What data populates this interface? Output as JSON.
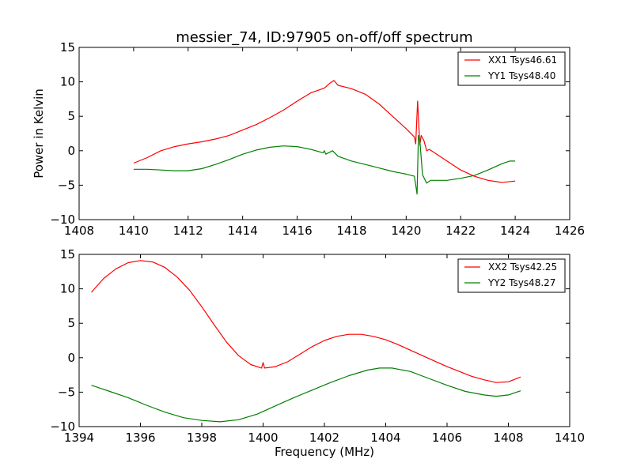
{
  "chart_data": [
    {
      "type": "line",
      "title": "messier_74, ID:97905 on-off/off spectrum",
      "xlabel": "",
      "ylabel": "Power in Kelvin",
      "xlim": [
        1408,
        1426
      ],
      "ylim": [
        -10,
        15
      ],
      "xticks": [
        1408,
        1410,
        1412,
        1414,
        1416,
        1418,
        1420,
        1422,
        1424,
        1426
      ],
      "xtick_labels": [
        "1408",
        "1410",
        "1412",
        "1414",
        "1416",
        "1418",
        "1420",
        "1422",
        "1424",
        "1426"
      ],
      "yticks": [
        -10,
        -5,
        0,
        5,
        10,
        15
      ],
      "ytick_labels": [
        "−10",
        "−5",
        "0",
        "5",
        "10",
        "15"
      ],
      "grid": false,
      "legend_position": "top-right",
      "series": [
        {
          "name": "XX1 Tsys46.61",
          "color": "#ff0000",
          "points": [
            [
              1410.0,
              -1.8
            ],
            [
              1410.5,
              -1.0
            ],
            [
              1411.0,
              0.0
            ],
            [
              1411.5,
              0.6
            ],
            [
              1412.0,
              1.0
            ],
            [
              1412.5,
              1.3
            ],
            [
              1413.0,
              1.7
            ],
            [
              1413.5,
              2.2
            ],
            [
              1414.0,
              3.0
            ],
            [
              1414.5,
              3.8
            ],
            [
              1415.0,
              4.8
            ],
            [
              1415.5,
              5.9
            ],
            [
              1416.0,
              7.2
            ],
            [
              1416.5,
              8.4
            ],
            [
              1417.0,
              9.1
            ],
            [
              1417.2,
              9.8
            ],
            [
              1417.35,
              10.2
            ],
            [
              1417.5,
              9.5
            ],
            [
              1418.0,
              9.0
            ],
            [
              1418.5,
              8.2
            ],
            [
              1419.0,
              6.8
            ],
            [
              1419.5,
              5.0
            ],
            [
              1420.0,
              3.2
            ],
            [
              1420.3,
              2.0
            ],
            [
              1420.35,
              1.0
            ],
            [
              1420.42,
              7.2
            ],
            [
              1420.5,
              0.8
            ],
            [
              1420.55,
              2.2
            ],
            [
              1420.65,
              1.5
            ],
            [
              1420.75,
              0.0
            ],
            [
              1420.85,
              0.2
            ],
            [
              1421.0,
              -0.2
            ],
            [
              1421.5,
              -1.5
            ],
            [
              1422.0,
              -2.8
            ],
            [
              1422.5,
              -3.7
            ],
            [
              1423.0,
              -4.3
            ],
            [
              1423.5,
              -4.6
            ],
            [
              1424.0,
              -4.4
            ]
          ]
        },
        {
          "name": "YY1 Tsys48.40",
          "color": "#008000",
          "points": [
            [
              1410.0,
              -2.7
            ],
            [
              1410.5,
              -2.7
            ],
            [
              1411.0,
              -2.8
            ],
            [
              1411.5,
              -2.9
            ],
            [
              1412.0,
              -2.9
            ],
            [
              1412.5,
              -2.6
            ],
            [
              1413.0,
              -2.0
            ],
            [
              1413.5,
              -1.3
            ],
            [
              1414.0,
              -0.5
            ],
            [
              1414.5,
              0.1
            ],
            [
              1415.0,
              0.5
            ],
            [
              1415.5,
              0.7
            ],
            [
              1416.0,
              0.6
            ],
            [
              1416.5,
              0.2
            ],
            [
              1416.95,
              -0.3
            ],
            [
              1417.0,
              0.0
            ],
            [
              1417.05,
              -0.5
            ],
            [
              1417.3,
              0.0
            ],
            [
              1417.5,
              -0.8
            ],
            [
              1418.0,
              -1.5
            ],
            [
              1418.5,
              -2.0
            ],
            [
              1419.0,
              -2.5
            ],
            [
              1419.5,
              -3.0
            ],
            [
              1420.0,
              -3.4
            ],
            [
              1420.3,
              -3.7
            ],
            [
              1420.4,
              -6.3
            ],
            [
              1420.45,
              2.2
            ],
            [
              1420.5,
              1.5
            ],
            [
              1420.6,
              -3.5
            ],
            [
              1420.75,
              -4.7
            ],
            [
              1420.9,
              -4.3
            ],
            [
              1421.0,
              -4.3
            ],
            [
              1421.5,
              -4.3
            ],
            [
              1422.0,
              -4.0
            ],
            [
              1422.5,
              -3.6
            ],
            [
              1423.0,
              -2.8
            ],
            [
              1423.5,
              -1.9
            ],
            [
              1423.8,
              -1.5
            ],
            [
              1424.0,
              -1.5
            ]
          ]
        }
      ]
    },
    {
      "type": "line",
      "title": "",
      "xlabel": "Frequency (MHz)",
      "ylabel": "",
      "xlim": [
        1394,
        1410
      ],
      "ylim": [
        -10,
        15
      ],
      "xticks": [
        1394,
        1396,
        1398,
        1400,
        1402,
        1404,
        1406,
        1408,
        1410
      ],
      "xtick_labels": [
        "1394",
        "1396",
        "1398",
        "1400",
        "1402",
        "1404",
        "1406",
        "1408",
        "1410"
      ],
      "yticks": [
        -10,
        -5,
        0,
        5,
        10,
        15
      ],
      "ytick_labels": [
        "−10",
        "−5",
        "0",
        "5",
        "10",
        "15"
      ],
      "grid": false,
      "legend_position": "top-right",
      "series": [
        {
          "name": "XX2 Tsys42.25",
          "color": "#ff0000",
          "points": [
            [
              1394.4,
              9.5
            ],
            [
              1394.8,
              11.5
            ],
            [
              1395.2,
              12.9
            ],
            [
              1395.6,
              13.8
            ],
            [
              1396.0,
              14.1
            ],
            [
              1396.4,
              13.9
            ],
            [
              1396.8,
              13.1
            ],
            [
              1397.2,
              11.7
            ],
            [
              1397.6,
              9.8
            ],
            [
              1398.0,
              7.4
            ],
            [
              1398.4,
              4.8
            ],
            [
              1398.8,
              2.3
            ],
            [
              1399.2,
              0.3
            ],
            [
              1399.6,
              -1.0
            ],
            [
              1399.95,
              -1.5
            ],
            [
              1400.0,
              -0.7
            ],
            [
              1400.05,
              -1.5
            ],
            [
              1400.4,
              -1.3
            ],
            [
              1400.8,
              -0.6
            ],
            [
              1401.2,
              0.5
            ],
            [
              1401.6,
              1.6
            ],
            [
              1402.0,
              2.5
            ],
            [
              1402.4,
              3.1
            ],
            [
              1402.8,
              3.4
            ],
            [
              1403.2,
              3.4
            ],
            [
              1403.6,
              3.1
            ],
            [
              1404.0,
              2.6
            ],
            [
              1404.4,
              1.9
            ],
            [
              1404.8,
              1.1
            ],
            [
              1405.2,
              0.3
            ],
            [
              1405.6,
              -0.5
            ],
            [
              1406.0,
              -1.3
            ],
            [
              1406.4,
              -2.0
            ],
            [
              1406.8,
              -2.7
            ],
            [
              1407.2,
              -3.2
            ],
            [
              1407.6,
              -3.6
            ],
            [
              1408.0,
              -3.5
            ],
            [
              1408.4,
              -2.8
            ]
          ]
        },
        {
          "name": "YY2 Tsys48.27",
          "color": "#008000",
          "points": [
            [
              1394.4,
              -4.0
            ],
            [
              1395.0,
              -4.9
            ],
            [
              1395.6,
              -5.8
            ],
            [
              1396.2,
              -6.9
            ],
            [
              1396.8,
              -7.9
            ],
            [
              1397.4,
              -8.7
            ],
            [
              1398.0,
              -9.1
            ],
            [
              1398.6,
              -9.3
            ],
            [
              1399.2,
              -9.0
            ],
            [
              1399.8,
              -8.2
            ],
            [
              1400.4,
              -7.0
            ],
            [
              1401.0,
              -5.8
            ],
            [
              1401.6,
              -4.7
            ],
            [
              1402.2,
              -3.6
            ],
            [
              1402.8,
              -2.6
            ],
            [
              1403.4,
              -1.8
            ],
            [
              1403.8,
              -1.5
            ],
            [
              1404.2,
              -1.5
            ],
            [
              1404.8,
              -2.0
            ],
            [
              1405.4,
              -3.0
            ],
            [
              1406.0,
              -4.0
            ],
            [
              1406.6,
              -4.9
            ],
            [
              1407.2,
              -5.4
            ],
            [
              1407.6,
              -5.6
            ],
            [
              1408.0,
              -5.4
            ],
            [
              1408.4,
              -4.8
            ]
          ]
        }
      ]
    }
  ]
}
